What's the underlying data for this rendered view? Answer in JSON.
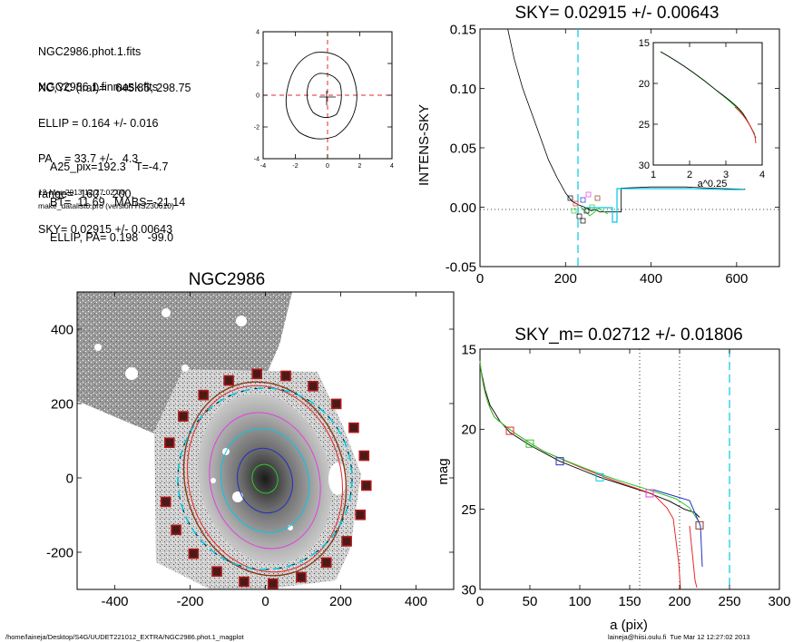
{
  "info": {
    "lines_a": [
      "NGC2986.phot.1.fits",
      "NGC2986.1.finmask.fits"
    ],
    "lines_b": [
      "XC,YC (iraf)=   645.85, 298.75",
      "ELLIP = 0.164 +/- 0.016",
      "PA    = 33.7 +/-   4.3",
      "range=  160.-  200.",
      "SKY= 0.02915 +/- 0.00643"
    ],
    "lines_c": [
      "A25_pix=192.3   T=-4.7",
      "BT=  11.69   MABS=-21.14",
      "ELLIP, PA= 0.198   -99.0"
    ],
    "date": "12-Mar-2013 12:27:02.00",
    "program": "make_datalist0.pro (version HS230610)"
  },
  "footer": {
    "path": "/home/laineja/Desktop/S4G/UUDET221012_EXTRA/NGC2986.phot.1_magplot",
    "user": "laineja@hiisi.oulu.fi  Tue Mar 12 12:27:02 2013"
  },
  "colors": {
    "cyan": "#00c8e6",
    "red": "#e8282a",
    "green": "#2ec82e",
    "blue": "#2030c0",
    "magenta": "#e040e0",
    "dark_red": "#8b1a1a",
    "brown": "#8b3a1a"
  },
  "chart_data": [
    {
      "id": "contour",
      "type": "contour",
      "xlim": [
        -4,
        4
      ],
      "ylim": [
        -4,
        4
      ],
      "xticks": [
        "-4",
        "-2",
        "0",
        "2",
        "4"
      ],
      "yticks": [
        "-4",
        "-2",
        "0",
        "2",
        "4"
      ]
    },
    {
      "id": "sky",
      "type": "line",
      "title": "SKY= 0.02915 +/- 0.00643",
      "ylabel": "INTENS-SKY",
      "xlim": [
        0,
        700
      ],
      "ylim": [
        -0.05,
        0.15
      ],
      "xticks": [
        "0",
        "200",
        "400",
        "600"
      ],
      "yticks": [
        "-0.05",
        "0.00",
        "0.05",
        "0.10",
        "0.15"
      ],
      "vline": 250,
      "profile": [
        [
          65,
          0.15
        ],
        [
          80,
          0.125
        ],
        [
          100,
          0.1
        ],
        [
          120,
          0.08
        ],
        [
          140,
          0.06
        ],
        [
          160,
          0.04
        ],
        [
          180,
          0.025
        ],
        [
          200,
          0.012
        ],
        [
          215,
          0.005
        ],
        [
          230,
          0.002
        ],
        [
          245,
          0.0
        ],
        [
          260,
          -0.003
        ],
        [
          270,
          -0.002
        ],
        [
          280,
          -0.004
        ],
        [
          330,
          -0.004
        ],
        [
          330,
          0.016
        ],
        [
          400,
          0.017
        ],
        [
          480,
          0.017
        ],
        [
          540,
          0.016
        ],
        [
          620,
          0.015
        ]
      ],
      "inset": {
        "xlabel": "a^0.25",
        "xlim": [
          1,
          4
        ],
        "ylim": [
          15,
          30
        ],
        "xticks": [
          "1",
          "2",
          "3",
          "4"
        ],
        "yticks": [
          "15",
          "20",
          "25",
          "30"
        ]
      }
    },
    {
      "id": "image",
      "type": "image",
      "title": "NGC2986",
      "xlim": [
        -500,
        500
      ],
      "ylim": [
        -300,
        500
      ],
      "xticks": [
        "-400",
        "-200",
        "0",
        "200",
        "400"
      ],
      "yticks": [
        "-200",
        "0",
        "200",
        "400"
      ]
    },
    {
      "id": "mag",
      "type": "line",
      "title": "SKY_m=  0.02712 +/- 0.01806",
      "xlabel": "a (pix)",
      "ylabel": "mag",
      "xlim": [
        0,
        300
      ],
      "ylim": [
        30,
        15
      ],
      "xticks": [
        "0",
        "50",
        "100",
        "150",
        "200",
        "250",
        "300"
      ],
      "yticks": [
        "15",
        "20",
        "25",
        "30"
      ],
      "vlines_dotted": [
        160,
        200
      ],
      "vline_cyan": 250,
      "profile": [
        [
          0,
          16
        ],
        [
          5,
          17.5
        ],
        [
          10,
          18.5
        ],
        [
          20,
          19.5
        ],
        [
          30,
          20.2
        ],
        [
          50,
          21
        ],
        [
          80,
          22
        ],
        [
          100,
          22.5
        ],
        [
          120,
          23
        ],
        [
          150,
          23.6
        ],
        [
          170,
          24
        ],
        [
          190,
          24.5
        ],
        [
          205,
          25
        ],
        [
          215,
          25.2
        ],
        [
          220,
          25.5
        ]
      ],
      "squares": [
        {
          "a": 30,
          "mag": 20.1,
          "color": "#e8282a"
        },
        {
          "a": 50,
          "mag": 20.9,
          "color": "#2ec82e"
        },
        {
          "a": 80,
          "mag": 22,
          "color": "#2030c0"
        },
        {
          "a": 120,
          "mag": 23,
          "color": "#00c8e6"
        },
        {
          "a": 170,
          "mag": 24,
          "color": "#e040e0"
        },
        {
          "a": 220,
          "mag": 26,
          "color": "#8b3a1a"
        }
      ]
    }
  ]
}
